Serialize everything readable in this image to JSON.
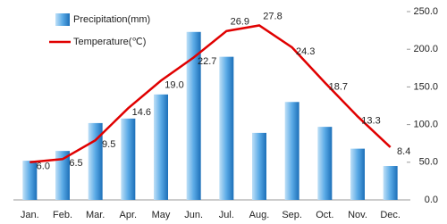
{
  "chart_data": {
    "type": "bar_line",
    "categories": [
      "Jan.",
      "Feb.",
      "Mar.",
      "Apr.",
      "May",
      "Jun.",
      "Jul.",
      "Aug.",
      "Sep.",
      "Oct.",
      "Nov.",
      "Dec."
    ],
    "series": [
      {
        "name": "Precipitation(mm)",
        "type": "bar",
        "axis": "y2",
        "color": "#1f7fc8",
        "values": [
          52,
          65,
          102,
          108,
          140,
          223,
          190,
          89,
          130,
          97,
          68,
          45
        ]
      },
      {
        "name": "Temperature(℃)",
        "type": "line",
        "color": "#e00000",
        "values": [
          6.0,
          6.5,
          9.5,
          14.6,
          19.0,
          22.7,
          26.9,
          27.8,
          24.3,
          18.7,
          13.3,
          8.4
        ],
        "value_labels": [
          "6.0",
          "6.5",
          "9.5",
          "14.6",
          "19.0",
          "22.7",
          "26.9",
          "27.8",
          "24.3",
          "18.7",
          "13.3",
          "8.4"
        ]
      }
    ],
    "ylim": [
      0,
      30
    ],
    "y2lim": [
      0,
      250
    ],
    "y2ticks": [
      {
        "value": 0,
        "label": "0.0"
      },
      {
        "value": 50,
        "label": "50.0"
      },
      {
        "value": 100,
        "label": "100.0"
      },
      {
        "value": 150,
        "label": "150.0"
      },
      {
        "value": 200,
        "label": "200.0"
      },
      {
        "value": 250,
        "label": "250.0"
      }
    ],
    "legend": "top-left"
  }
}
